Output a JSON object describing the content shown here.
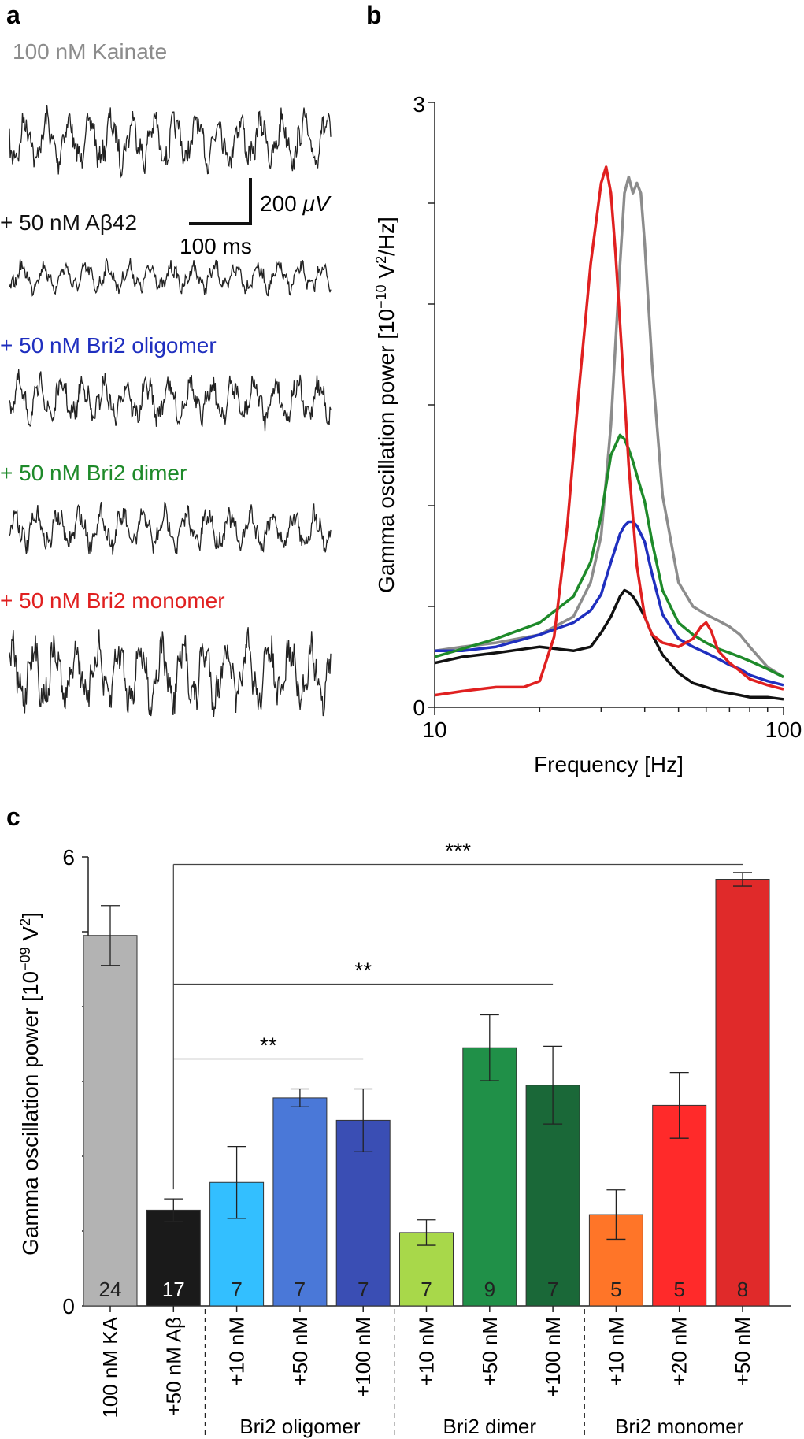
{
  "panels": {
    "a": "a",
    "b": "b",
    "c": "c"
  },
  "panel_a": {
    "traces": [
      {
        "label": "100 nM Kainate",
        "color": "#8c8c8c"
      },
      {
        "label": "+ 50 nM Aβ42",
        "color": "#111111"
      },
      {
        "label": "+ 50 nM Bri2 oligomer",
        "color": "#1f2fbf"
      },
      {
        "label": "+ 50 nM Bri2 dimer",
        "color": "#1e8a2a"
      },
      {
        "label": "+ 50 nM Bri2 monomer",
        "color": "#e02020"
      }
    ],
    "scale_bar": {
      "vertical": "200",
      "vertical_unit": "μV",
      "horizontal": "100 ms"
    }
  },
  "chart_data": [
    {
      "type": "line",
      "panel": "b",
      "xlabel": "Frequency [Hz]",
      "ylabel": "Gamma oscillation power [10",
      "ylabel_exp": "−10",
      "ylabel_mid": " V",
      "ylabel_exp2": "2",
      "ylabel_end": "/Hz]",
      "xscale": "log",
      "xlim": [
        10,
        100
      ],
      "ylim": [
        0,
        3
      ],
      "xticks": [
        "10",
        "100"
      ],
      "yticks": [
        "0",
        "3"
      ],
      "series": [
        {
          "name": "100 nM Kainate",
          "color": "#8c8c8c",
          "x": [
            10,
            12,
            15,
            20,
            25,
            28,
            30,
            32,
            34,
            35,
            36,
            37,
            38,
            39,
            40,
            42,
            45,
            50,
            55,
            60,
            65,
            70,
            75,
            80,
            90,
            100
          ],
          "y": [
            0.28,
            0.3,
            0.32,
            0.36,
            0.45,
            0.62,
            0.85,
            1.4,
            2.2,
            2.55,
            2.63,
            2.55,
            2.6,
            2.55,
            2.3,
            1.7,
            1.05,
            0.62,
            0.5,
            0.46,
            0.43,
            0.4,
            0.36,
            0.3,
            0.2,
            0.15
          ]
        },
        {
          "name": "+ 50 nM Aβ42",
          "color": "#111111",
          "x": [
            10,
            12,
            15,
            20,
            25,
            28,
            30,
            32,
            34,
            35,
            36,
            37,
            38,
            40,
            42,
            45,
            50,
            55,
            60,
            65,
            70,
            75,
            80,
            90,
            100
          ],
          "y": [
            0.22,
            0.25,
            0.27,
            0.3,
            0.28,
            0.3,
            0.37,
            0.45,
            0.55,
            0.58,
            0.57,
            0.55,
            0.52,
            0.45,
            0.36,
            0.26,
            0.17,
            0.12,
            0.1,
            0.08,
            0.07,
            0.06,
            0.05,
            0.05,
            0.04
          ]
        },
        {
          "name": "+ 50 nM Bri2 oligomer",
          "color": "#1f2fbf",
          "x": [
            10,
            12,
            15,
            20,
            25,
            28,
            30,
            32,
            34,
            35,
            36,
            37,
            38,
            40,
            42,
            45,
            50,
            55,
            60,
            65,
            70,
            75,
            80,
            90,
            100
          ],
          "y": [
            0.28,
            0.28,
            0.3,
            0.36,
            0.42,
            0.48,
            0.56,
            0.72,
            0.86,
            0.9,
            0.92,
            0.92,
            0.9,
            0.82,
            0.66,
            0.46,
            0.34,
            0.3,
            0.27,
            0.24,
            0.21,
            0.19,
            0.16,
            0.13,
            0.11
          ]
        },
        {
          "name": "+ 50 nM Bri2 dimer",
          "color": "#1e8a2a",
          "x": [
            10,
            12,
            15,
            20,
            25,
            28,
            30,
            32,
            34,
            35,
            36,
            37,
            38,
            40,
            42,
            45,
            50,
            55,
            60,
            65,
            70,
            75,
            80,
            90,
            100
          ],
          "y": [
            0.25,
            0.29,
            0.34,
            0.42,
            0.55,
            0.72,
            0.95,
            1.25,
            1.35,
            1.33,
            1.28,
            1.22,
            1.15,
            1.02,
            0.82,
            0.58,
            0.42,
            0.36,
            0.32,
            0.29,
            0.27,
            0.25,
            0.23,
            0.19,
            0.15
          ]
        },
        {
          "name": "+ 50 nM Bri2 monomer",
          "color": "#e02020",
          "x": [
            10,
            12,
            15,
            18,
            20,
            22,
            24,
            26,
            28,
            30,
            31,
            32,
            33,
            34,
            35,
            36,
            38,
            40,
            42,
            45,
            50,
            55,
            58,
            60,
            62,
            65,
            70,
            75,
            80,
            90,
            100
          ],
          "y": [
            0.06,
            0.08,
            0.1,
            0.1,
            0.13,
            0.35,
            0.9,
            1.6,
            2.2,
            2.6,
            2.68,
            2.55,
            2.25,
            1.9,
            1.55,
            1.2,
            0.7,
            0.45,
            0.36,
            0.32,
            0.3,
            0.34,
            0.4,
            0.42,
            0.38,
            0.28,
            0.22,
            0.18,
            0.14,
            0.11,
            0.09
          ]
        }
      ]
    },
    {
      "type": "bar",
      "panel": "c",
      "ylabel": "Gamma oscillation power [10",
      "ylabel_exp": "−09",
      "ylabel_mid": " V",
      "ylabel_exp2": "2",
      "ylabel_end": "]",
      "ylim": [
        0,
        6
      ],
      "yticks": [
        "0",
        "6"
      ],
      "categories": [
        "100 nM KA",
        "+50 nM Aβ",
        "+10 nM",
        "+50 nM",
        "+100 nM",
        "+10 nM",
        "+50 nM",
        "+100 nM",
        "+10 nM",
        "+20 nM",
        "+50 nM"
      ],
      "values": [
        4.95,
        1.28,
        1.65,
        2.78,
        2.48,
        0.98,
        3.45,
        2.95,
        1.22,
        2.68,
        5.7
      ],
      "errors": [
        0.4,
        0.15,
        0.48,
        0.12,
        0.42,
        0.17,
        0.44,
        0.52,
        0.33,
        0.44,
        0.09
      ],
      "n": [
        "24",
        "17",
        "7",
        "7",
        "7",
        "7",
        "9",
        "7",
        "5",
        "5",
        "8"
      ],
      "colors": [
        "#b3b3b3",
        "#1a1a1a",
        "#33bfff",
        "#4a78d8",
        "#3a4eb4",
        "#a8d84a",
        "#209048",
        "#1a6838",
        "#ff7528",
        "#ff2a2a",
        "#e02a2a"
      ],
      "n_colors": [
        "#222222",
        "#ffffff",
        "#222222",
        "#222222",
        "#222222",
        "#222222",
        "#222222",
        "#222222",
        "#222222",
        "#222222",
        "#222222"
      ],
      "groups": [
        {
          "label": "Bri2 oligomer",
          "from": 2,
          "to": 4
        },
        {
          "label": "Bri2 dimer",
          "from": 5,
          "to": 7
        },
        {
          "label": "Bri2 monomer",
          "from": 8,
          "to": 10
        }
      ],
      "significance": [
        {
          "label": "***",
          "from": 1,
          "to": 10,
          "level": 5.9
        },
        {
          "label": "**",
          "from": 1,
          "to": 7,
          "level": 4.3
        },
        {
          "label": "**",
          "from": 1,
          "to": 4,
          "level": 3.3
        }
      ]
    }
  ]
}
